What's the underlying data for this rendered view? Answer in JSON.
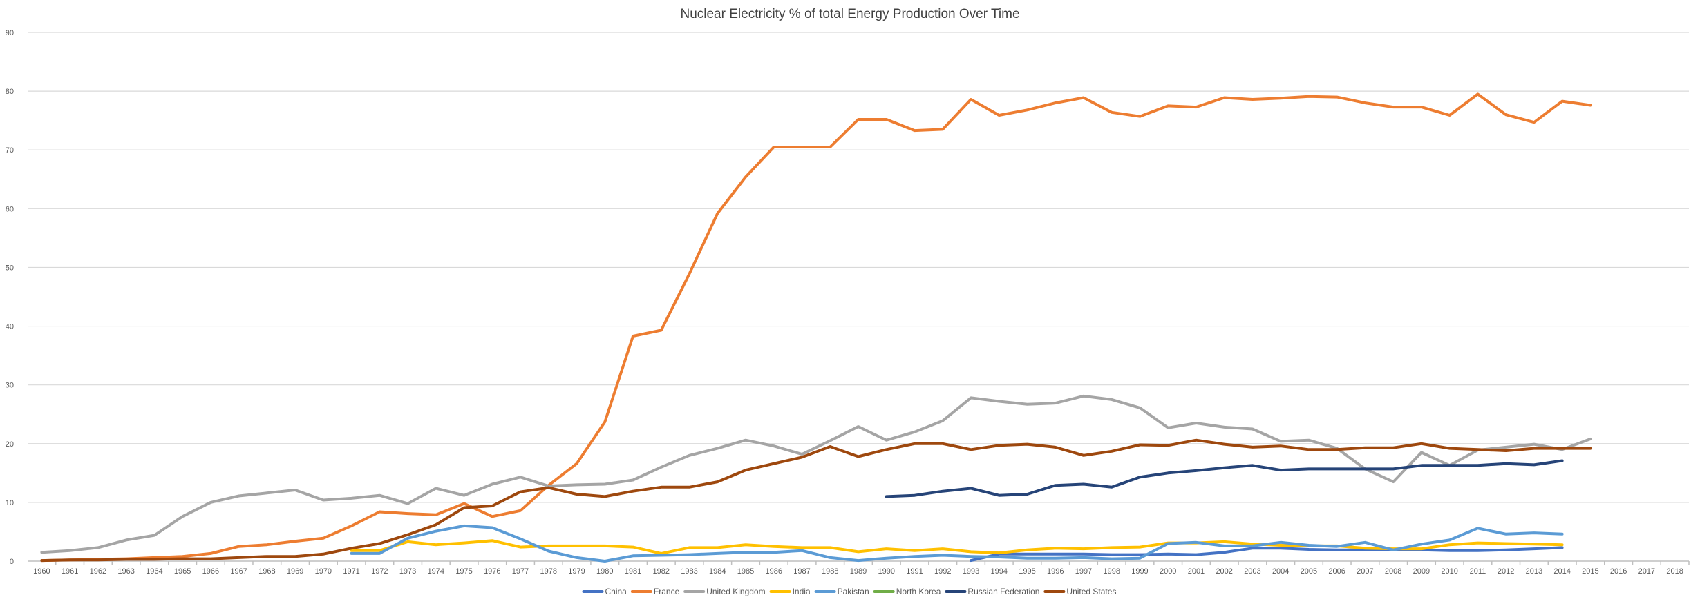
{
  "chart_data": {
    "type": "line",
    "title": "Nuclear Electricity % of total Energy Production Over Time",
    "xlabel": "",
    "ylabel": "",
    "ylim": [
      0,
      90
    ],
    "yticks": [
      0,
      10,
      20,
      30,
      40,
      50,
      60,
      70,
      80,
      90
    ],
    "grid": true,
    "legend": "bottom",
    "x": [
      1960,
      1961,
      1962,
      1963,
      1964,
      1965,
      1966,
      1967,
      1968,
      1969,
      1970,
      1971,
      1972,
      1973,
      1974,
      1975,
      1976,
      1977,
      1978,
      1979,
      1980,
      1981,
      1982,
      1983,
      1984,
      1985,
      1986,
      1987,
      1988,
      1989,
      1990,
      1991,
      1992,
      1993,
      1994,
      1995,
      1996,
      1997,
      1998,
      1999,
      2000,
      2001,
      2002,
      2003,
      2004,
      2005,
      2006,
      2007,
      2008,
      2009,
      2010,
      2011,
      2012,
      2013,
      2014,
      2015,
      2016,
      2017,
      2018
    ],
    "series": [
      {
        "name": "China",
        "color": "#4472C4",
        "values": [
          null,
          null,
          null,
          null,
          null,
          null,
          null,
          null,
          null,
          null,
          null,
          null,
          null,
          null,
          null,
          null,
          null,
          null,
          null,
          null,
          null,
          null,
          null,
          null,
          null,
          null,
          null,
          null,
          null,
          null,
          null,
          null,
          null,
          0.1,
          1.2,
          1.2,
          1.2,
          1.2,
          1.1,
          1.1,
          1.2,
          1.1,
          1.5,
          2.2,
          2.2,
          2.0,
          1.9,
          1.9,
          2.0,
          1.9,
          1.8,
          1.8,
          1.9,
          2.1,
          2.3,
          null,
          null,
          null,
          null
        ]
      },
      {
        "name": "France",
        "color": "#ED7D31",
        "values": [
          0.1,
          0.2,
          0.3,
          0.4,
          0.6,
          0.8,
          1.3,
          2.5,
          2.8,
          3.4,
          3.9,
          6.0,
          8.4,
          8.1,
          7.9,
          9.8,
          7.6,
          8.6,
          12.9,
          16.6,
          23.7,
          38.3,
          39.3,
          48.9,
          59.2,
          65.4,
          70.5,
          70.5,
          70.5,
          75.2,
          75.2,
          73.3,
          73.5,
          78.6,
          75.9,
          76.8,
          78.0,
          78.9,
          76.4,
          75.7,
          77.5,
          77.3,
          78.9,
          78.6,
          78.8,
          79.1,
          79.0,
          78.0,
          77.3,
          77.3,
          75.9,
          79.5,
          76.0,
          74.7,
          78.3,
          77.6,
          null,
          null,
          null
        ]
      },
      {
        "name": "United Kingdom",
        "color": "#A5A5A5",
        "values": [
          1.5,
          1.8,
          2.3,
          3.6,
          4.4,
          7.6,
          10.0,
          11.1,
          11.6,
          12.1,
          10.4,
          10.7,
          11.2,
          9.8,
          12.4,
          11.2,
          13.1,
          14.3,
          12.8,
          13.0,
          13.1,
          13.8,
          16.0,
          18.0,
          19.2,
          20.6,
          19.6,
          18.2,
          20.5,
          22.9,
          20.6,
          22.0,
          23.9,
          27.8,
          27.2,
          26.7,
          26.9,
          28.1,
          27.5,
          26.1,
          22.7,
          23.5,
          22.8,
          22.5,
          20.4,
          20.6,
          19.2,
          15.7,
          13.5,
          18.5,
          16.3,
          18.9,
          19.4,
          19.9,
          19.0,
          20.8,
          null,
          null,
          null
        ]
      },
      {
        "name": "India",
        "color": "#FFC000",
        "values": [
          null,
          null,
          null,
          null,
          null,
          null,
          null,
          null,
          null,
          null,
          null,
          1.8,
          1.8,
          3.3,
          2.8,
          3.1,
          3.5,
          2.4,
          2.6,
          2.6,
          2.6,
          2.4,
          1.3,
          2.3,
          2.3,
          2.8,
          2.5,
          2.3,
          2.3,
          1.6,
          2.1,
          1.8,
          2.1,
          1.6,
          1.4,
          1.9,
          2.2,
          2.1,
          2.3,
          2.4,
          3.1,
          3.1,
          3.3,
          2.9,
          2.7,
          2.6,
          2.6,
          2.2,
          2.1,
          2.1,
          2.8,
          3.1,
          3.0,
          2.9,
          2.8,
          null,
          null,
          null,
          null
        ]
      },
      {
        "name": "Pakistan",
        "color": "#5B9BD5",
        "values": [
          null,
          null,
          null,
          null,
          null,
          null,
          null,
          null,
          null,
          null,
          null,
          1.3,
          1.3,
          3.9,
          5.1,
          6.0,
          5.7,
          3.8,
          1.7,
          0.6,
          0.0,
          0.9,
          1.0,
          1.1,
          1.3,
          1.5,
          1.5,
          1.8,
          0.6,
          0.1,
          0.5,
          0.8,
          1.0,
          0.8,
          0.7,
          0.5,
          0.5,
          0.6,
          0.4,
          0.5,
          3.0,
          3.2,
          2.6,
          2.6,
          3.2,
          2.7,
          2.5,
          3.2,
          1.9,
          2.9,
          3.6,
          5.6,
          4.6,
          4.8,
          4.6,
          null,
          null,
          null,
          null
        ]
      },
      {
        "name": "North Korea",
        "color": "#70AD47",
        "values": [
          null,
          null,
          null,
          null,
          null,
          null,
          null,
          null,
          null,
          null,
          null,
          null,
          null,
          null,
          null,
          null,
          null,
          null,
          null,
          null,
          null,
          null,
          null,
          null,
          null,
          null,
          null,
          null,
          null,
          null,
          null,
          null,
          null,
          null,
          null,
          null,
          null,
          null,
          null,
          null,
          null,
          null,
          null,
          null,
          null,
          null,
          null,
          null,
          null,
          null,
          null,
          null,
          null,
          null,
          null,
          null,
          null,
          null,
          null
        ]
      },
      {
        "name": "Russian Federation",
        "color": "#264478",
        "values": [
          null,
          null,
          null,
          null,
          null,
          null,
          null,
          null,
          null,
          null,
          null,
          null,
          null,
          null,
          null,
          null,
          null,
          null,
          null,
          null,
          null,
          null,
          null,
          null,
          null,
          null,
          null,
          null,
          null,
          null,
          11.0,
          11.2,
          11.9,
          12.4,
          11.2,
          11.4,
          12.9,
          13.1,
          12.6,
          14.3,
          15.0,
          15.4,
          15.9,
          16.3,
          15.5,
          15.7,
          15.7,
          15.7,
          15.7,
          16.3,
          16.3,
          16.3,
          16.6,
          16.4,
          17.1,
          null,
          null,
          null,
          null
        ]
      },
      {
        "name": "United States",
        "color": "#9E480E",
        "values": [
          0.1,
          0.2,
          0.2,
          0.3,
          0.3,
          0.4,
          0.4,
          0.6,
          0.8,
          0.8,
          1.2,
          2.2,
          3.0,
          4.5,
          6.2,
          9.1,
          9.4,
          11.8,
          12.5,
          11.4,
          11.0,
          11.9,
          12.6,
          12.6,
          13.5,
          15.5,
          16.6,
          17.7,
          19.5,
          17.8,
          19.0,
          20.0,
          20.0,
          19.0,
          19.7,
          19.9,
          19.4,
          18.0,
          18.7,
          19.8,
          19.7,
          20.6,
          19.9,
          19.4,
          19.6,
          19.0,
          19.0,
          19.3,
          19.3,
          20.0,
          19.2,
          19.0,
          18.8,
          19.2,
          19.2,
          19.2,
          null,
          null,
          null
        ]
      }
    ]
  }
}
